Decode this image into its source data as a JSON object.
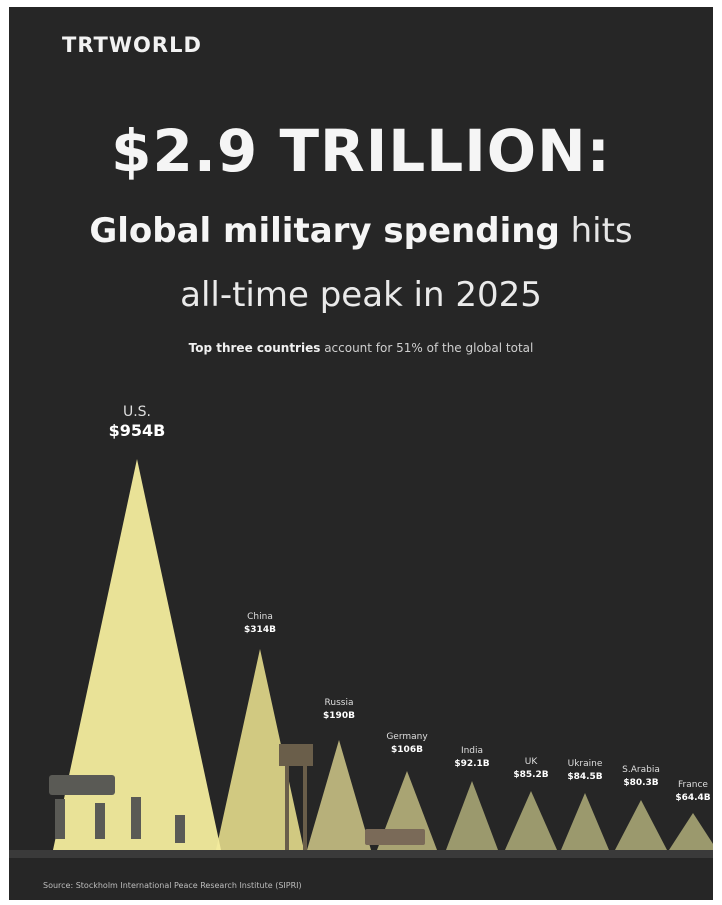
{
  "brand": {
    "logo": "TRTWORLD"
  },
  "headline": "$2.9 TRILLION:",
  "subtitle": {
    "bold": "Global military spending",
    "rest": " hits",
    "line2": "all-time peak in 2025"
  },
  "tagline": {
    "bold": "Top three countries",
    "rest": " account for 51% of the global total"
  },
  "source": "Source: Stockholm International Peace Research Institute (SIPRI)",
  "colors": {
    "background": "#262626",
    "us_fill": "#f3ec9d",
    "china_fill": "#e4dc8c",
    "russia_fill": "#c8c084",
    "germany_fill": "#b8b27c",
    "rest_fill": "#a8a676",
    "ground": "#3a3a3a",
    "text": "#f5f5f5"
  },
  "chart_data": {
    "type": "bar",
    "style": "triangular spotlight peaks",
    "unit": "USD billions",
    "categories": [
      "U.S.",
      "China",
      "Russia",
      "Germany",
      "India",
      "UK",
      "Ukraine",
      "S.Arabia",
      "France"
    ],
    "labels": [
      "$954B",
      "$314B",
      "$190B",
      "$106B",
      "$92.1B",
      "$85.2B",
      "$84.5B",
      "$80.3B",
      "$64.4B"
    ],
    "values": [
      954,
      314,
      190,
      106,
      92.1,
      85.2,
      84.5,
      80.3,
      64.4
    ]
  }
}
